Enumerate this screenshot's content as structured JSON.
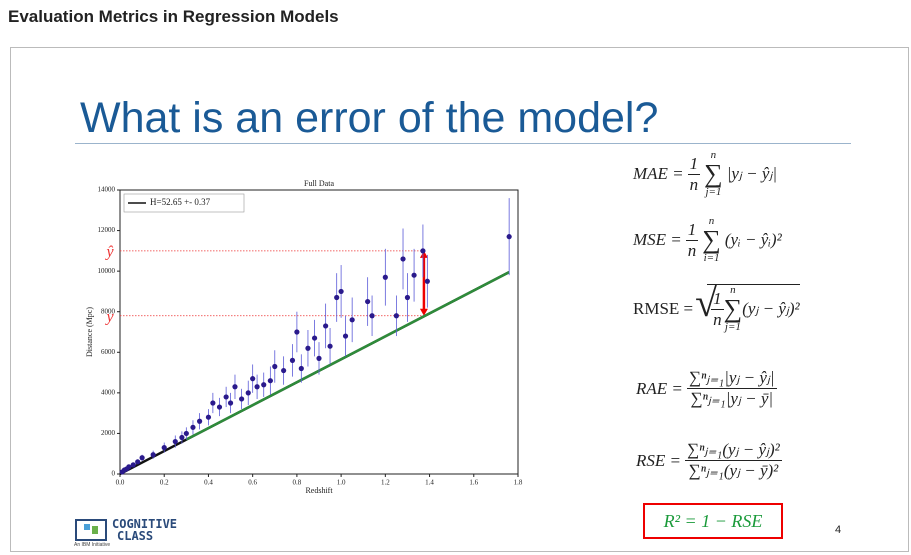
{
  "header": {
    "title": "Evaluation Metrics in Regression Models"
  },
  "slide": {
    "title": "What is an error of the model?",
    "page_number": "4",
    "logo": {
      "line1": "COGNITIVE",
      "line2": "CLASS",
      "tagline": "An IBM Initiative"
    }
  },
  "chart_data": {
    "type": "scatter",
    "title": "Full Data",
    "x_label": "Redshift",
    "y_label": "Distance (Mpc)",
    "xlim": [
      0,
      1.8
    ],
    "ylim": [
      0,
      14000
    ],
    "xticks": [
      {
        "value": 0,
        "label": "0.0"
      },
      0.2,
      0.4,
      0.6,
      0.8,
      {
        "value": 1,
        "label": "1.0"
      },
      1.2,
      1.4,
      1.6,
      1.8
    ],
    "yticks": [
      0,
      2000,
      4000,
      6000,
      8000,
      10000,
      12000,
      14000
    ],
    "legend": "upper left",
    "series": [
      {
        "name": "H=52.65 +- 0.37",
        "type": "line",
        "color": "#111111",
        "x": [
          0,
          1.76
        ],
        "values": [
          0,
          9950
        ]
      },
      {
        "type": "line",
        "color": "#2e8b3a",
        "x": [
          0.3,
          1.76
        ],
        "values": [
          1700,
          9950
        ]
      },
      {
        "type": "errorbar",
        "color": "#2a1a8c",
        "x": [
          0.01,
          0.02,
          0.03,
          0.04,
          0.06,
          0.08,
          0.1,
          0.15,
          0.2,
          0.25,
          0.28,
          0.3,
          0.33,
          0.36,
          0.4,
          0.42,
          0.45,
          0.48,
          0.5,
          0.52,
          0.55,
          0.58,
          0.6,
          0.62,
          0.65,
          0.68,
          0.7,
          0.74,
          0.78,
          0.8,
          0.82,
          0.85,
          0.88,
          0.9,
          0.93,
          0.95,
          0.98,
          1.0,
          1.02,
          1.05,
          1.12,
          1.14,
          1.2,
          1.25,
          1.28,
          1.3,
          1.33,
          1.37,
          1.39,
          1.76
        ],
        "values": [
          100,
          200,
          250,
          350,
          450,
          600,
          800,
          950,
          1300,
          1600,
          1800,
          2000,
          2300,
          2600,
          2800,
          3500,
          3300,
          3800,
          3500,
          4300,
          3700,
          4000,
          4700,
          4300,
          4400,
          4600,
          5300,
          5100,
          5600,
          7000,
          5200,
          6200,
          6700,
          5700,
          7300,
          6300,
          8700,
          9000,
          6800,
          7600,
          8500,
          7800,
          9700,
          7800,
          10600,
          8700,
          9800,
          11000,
          9500,
          11700
        ],
        "errors": [
          50,
          60,
          80,
          80,
          100,
          120,
          150,
          200,
          250,
          300,
          300,
          300,
          350,
          400,
          400,
          500,
          450,
          500,
          500,
          600,
          500,
          600,
          700,
          600,
          600,
          700,
          800,
          700,
          800,
          1000,
          700,
          900,
          900,
          800,
          1100,
          900,
          1200,
          1300,
          1000,
          1100,
          1200,
          1000,
          1400,
          1000,
          1500,
          1200,
          1300,
          1300,
          1300,
          1900
        ]
      }
    ],
    "annotations": [
      {
        "label": "ŷ",
        "value": 11000,
        "x": 1.37
      },
      {
        "label": "y",
        "value": 7800,
        "x": 1.37
      }
    ]
  },
  "formulas": {
    "mae": {
      "lhs": "MAE =",
      "num": "1",
      "den": "n",
      "sum_top": "n",
      "sum": "∑",
      "sum_bottom": "j=1",
      "body": "|yⱼ − ŷⱼ|"
    },
    "mse": {
      "lhs": "MSE =",
      "num": "1",
      "den": "n",
      "sum_top": "n",
      "sum": "∑",
      "sum_bottom": "i=1",
      "body": "(yᵢ − ŷᵢ)²"
    },
    "rmse": {
      "lhs": "RMSE =",
      "num": "1",
      "den": "n",
      "sum_top": "n",
      "sum": "∑",
      "sum_bottom": "j=1",
      "body": "(yⱼ − ŷⱼ)²"
    },
    "rae": {
      "lhs": "RAE =",
      "num": "∑ⁿⱼ₌₁|yⱼ − ŷⱼ|",
      "den": "∑ⁿⱼ₌₁|yⱼ − ȳ|"
    },
    "rse": {
      "lhs": "RSE =",
      "num": "∑ⁿⱼ₌₁(yⱼ − ŷⱼ)²",
      "den": "∑ⁿⱼ₌₁(yⱼ − ȳ)²"
    },
    "r2": {
      "text": "R² = 1 − RSE"
    }
  }
}
